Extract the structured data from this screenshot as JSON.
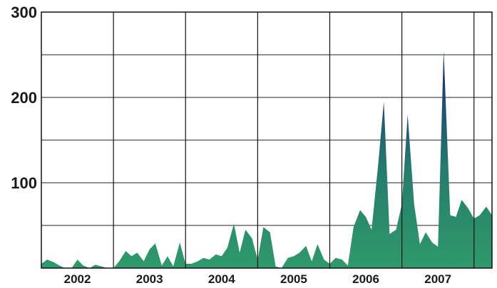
{
  "chart_data": {
    "type": "area",
    "title": "",
    "xlabel": "",
    "ylabel": "",
    "ylim": [
      0,
      300
    ],
    "xlim": [
      2001.5,
      2007.75
    ],
    "y_ticks": [
      "300",
      "200",
      "100"
    ],
    "y_tick_values": [
      300,
      200,
      100
    ],
    "x_ticks": [
      "2002",
      "2003",
      "2004",
      "2005",
      "2006",
      "2007"
    ],
    "x_tick_values": [
      2002,
      2003,
      2004,
      2005,
      2006,
      2007
    ],
    "year_boundaries": [
      2002.5,
      2003.5,
      2004.5,
      2005.5,
      2006.5,
      2007.5
    ],
    "grid": true,
    "legend": "none",
    "colors": {
      "low": "#2f9a6a",
      "high": "#1c1f7a",
      "grid": "#111111"
    },
    "series": [
      {
        "x": [
          2001.5,
          2001.58,
          2001.67,
          2001.75,
          2001.83,
          2001.92,
          2002.0,
          2002.08,
          2002.17,
          2002.25,
          2002.33,
          2002.42,
          2002.5,
          2002.58,
          2002.67,
          2002.75,
          2002.83,
          2002.92,
          2003.0,
          2003.08,
          2003.17,
          2003.25,
          2003.33,
          2003.42,
          2003.5,
          2003.58,
          2003.67,
          2003.75,
          2003.83,
          2003.92,
          2004.0,
          2004.08,
          2004.17,
          2004.25,
          2004.33,
          2004.42,
          2004.5,
          2004.58,
          2004.67,
          2004.75,
          2004.83,
          2004.92,
          2005.0,
          2005.08,
          2005.17,
          2005.25,
          2005.33,
          2005.42,
          2005.5,
          2005.58,
          2005.67,
          2005.75,
          2005.83,
          2005.92,
          2006.0,
          2006.08,
          2006.17,
          2006.25,
          2006.33,
          2006.42,
          2006.5,
          2006.58,
          2006.67,
          2006.75,
          2006.83,
          2006.92,
          2007.0,
          2007.08,
          2007.17,
          2007.25,
          2007.33,
          2007.42,
          2007.5,
          2007.58,
          2007.67,
          2007.75
        ],
        "values": [
          5,
          10,
          7,
          3,
          0,
          0,
          10,
          3,
          0,
          4,
          2,
          0,
          0,
          8,
          20,
          14,
          18,
          8,
          22,
          29,
          3,
          14,
          2,
          30,
          5,
          5,
          8,
          12,
          10,
          16,
          14,
          24,
          52,
          18,
          45,
          35,
          10,
          48,
          42,
          2,
          0,
          12,
          14,
          18,
          26,
          8,
          28,
          10,
          5,
          12,
          10,
          3,
          48,
          68,
          60,
          45,
          120,
          195,
          40,
          45,
          75,
          180,
          75,
          28,
          42,
          30,
          25,
          255,
          62,
          60,
          80,
          70,
          58,
          62,
          72,
          62
        ]
      }
    ]
  }
}
